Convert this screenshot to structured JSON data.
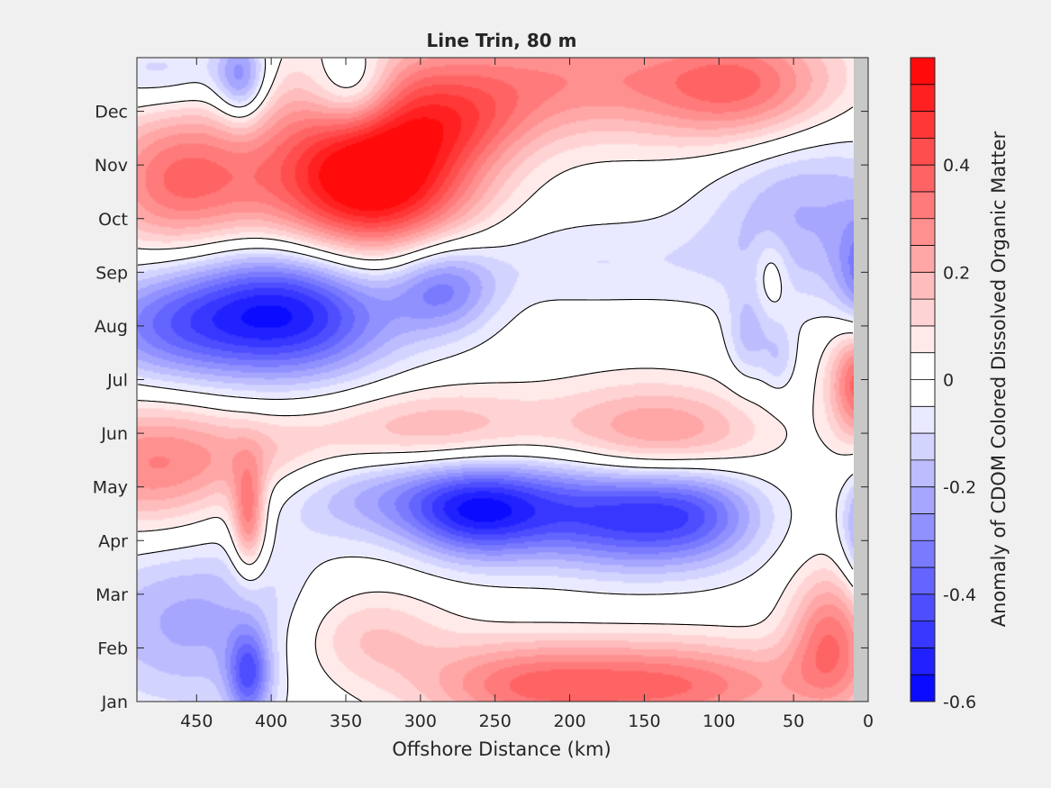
{
  "chart_data": {
    "type": "heatmap",
    "title": "Line Trin, 80 m",
    "xlabel": "Offshore Distance (km)",
    "ylabel": "",
    "x_reversed": true,
    "xlim": [
      490,
      0
    ],
    "x_ticks": [
      450,
      400,
      350,
      300,
      250,
      200,
      150,
      100,
      50,
      0
    ],
    "y_ticks": [
      "Jan",
      "Feb",
      "Mar",
      "Apr",
      "May",
      "Jun",
      "Jul",
      "Aug",
      "Sep",
      "Oct",
      "Nov",
      "Dec"
    ],
    "colorbar": {
      "label": "Anomaly of CDOM Colored Dissolved Organic Matter",
      "range": [
        -0.6,
        0.6
      ],
      "ticks": [
        -0.6,
        -0.4,
        -0.2,
        0,
        0.2,
        0.4
      ],
      "levels": 24,
      "zero_contour": true,
      "color_negative": "#0000ff",
      "color_positive": "#ff0000",
      "color_zero": "#ffffff"
    },
    "blobs": [
      {
        "x": 345,
        "month": 9.7,
        "value": 0.55,
        "sx": 45,
        "sy": 1.2
      },
      {
        "x": 460,
        "month": 9.7,
        "value": 0.36,
        "sx": 40,
        "sy": 1.0
      },
      {
        "x": 300,
        "month": 9.9,
        "value": 0.22,
        "sx": 40,
        "sy": 1.0
      },
      {
        "x": 385,
        "month": 7.3,
        "value": -0.55,
        "sx": 50,
        "sy": 0.9
      },
      {
        "x": 285,
        "month": 7.7,
        "value": -0.28,
        "sx": 25,
        "sy": 0.6
      },
      {
        "x": 470,
        "month": 7.0,
        "value": -0.28,
        "sx": 45,
        "sy": 0.8
      },
      {
        "x": 230,
        "month": 3.6,
        "value": -0.38,
        "sx": 45,
        "sy": 0.7
      },
      {
        "x": 120,
        "month": 3.5,
        "value": -0.4,
        "sx": 35,
        "sy": 0.7
      },
      {
        "x": 330,
        "month": 3.9,
        "value": -0.22,
        "sx": 55,
        "sy": 0.6
      },
      {
        "x": 170,
        "month": 3.4,
        "value": -0.2,
        "sx": 30,
        "sy": 0.7
      },
      {
        "x": 270,
        "month": 3.5,
        "value": -0.22,
        "sx": 30,
        "sy": 0.6
      },
      {
        "x": 0,
        "month": 3.2,
        "value": -0.3,
        "sx": 12,
        "sy": 0.8
      },
      {
        "x": 5,
        "month": 6.0,
        "value": 0.42,
        "sx": 15,
        "sy": 0.8
      },
      {
        "x": 0,
        "month": 7.8,
        "value": -0.3,
        "sx": 15,
        "sy": 0.9
      },
      {
        "x": 480,
        "month": 4.4,
        "value": 0.3,
        "sx": 45,
        "sy": 0.9
      },
      {
        "x": 400,
        "month": 4.5,
        "value": 0.12,
        "sx": 40,
        "sy": 0.6
      },
      {
        "x": 415,
        "month": 3.4,
        "value": 0.33,
        "sx": 8,
        "sy": 0.7
      },
      {
        "x": 290,
        "month": 5.0,
        "value": 0.22,
        "sx": 60,
        "sy": 0.6
      },
      {
        "x": 150,
        "month": 5.0,
        "value": 0.2,
        "sx": 45,
        "sy": 0.7
      },
      {
        "x": 110,
        "month": 4.9,
        "value": 0.1,
        "sx": 40,
        "sy": 0.6
      },
      {
        "x": 140,
        "month": 0.3,
        "value": 0.36,
        "sx": 75,
        "sy": 0.6
      },
      {
        "x": 240,
        "month": 0.3,
        "value": 0.2,
        "sx": 45,
        "sy": 0.6
      },
      {
        "x": 340,
        "month": 1.2,
        "value": 0.18,
        "sx": 40,
        "sy": 0.7
      },
      {
        "x": 25,
        "month": 1.2,
        "value": 0.32,
        "sx": 20,
        "sy": 0.9
      },
      {
        "x": 210,
        "month": 11.6,
        "value": 0.28,
        "sx": 95,
        "sy": 0.8
      },
      {
        "x": 80,
        "month": 11.4,
        "value": 0.3,
        "sx": 45,
        "sy": 0.8
      },
      {
        "x": 270,
        "month": 10.8,
        "value": 0.15,
        "sx": 35,
        "sy": 0.6
      },
      {
        "x": 345,
        "month": 11.4,
        "value": -0.28,
        "sx": 20,
        "sy": 0.6
      },
      {
        "x": 420,
        "month": 11.6,
        "value": -0.28,
        "sx": 12,
        "sy": 0.6
      },
      {
        "x": 470,
        "month": 11.7,
        "value": -0.15,
        "sx": 40,
        "sy": 0.5
      },
      {
        "x": 450,
        "month": 1.5,
        "value": -0.22,
        "sx": 60,
        "sy": 1.2
      },
      {
        "x": 415,
        "month": 0.5,
        "value": -0.33,
        "sx": 10,
        "sy": 0.6
      },
      {
        "x": 45,
        "month": 9.3,
        "value": -0.2,
        "sx": 45,
        "sy": 1.3
      },
      {
        "x": 190,
        "month": 8.2,
        "value": -0.1,
        "sx": 85,
        "sy": 0.6
      },
      {
        "x": 80,
        "month": 6.8,
        "value": -0.15,
        "sx": 10,
        "sy": 0.6
      },
      {
        "x": 60,
        "month": 6.4,
        "value": -0.12,
        "sx": 8,
        "sy": 0.5
      },
      {
        "x": 65,
        "month": 8.0,
        "value": 0.12,
        "sx": 8,
        "sy": 0.5
      }
    ]
  }
}
